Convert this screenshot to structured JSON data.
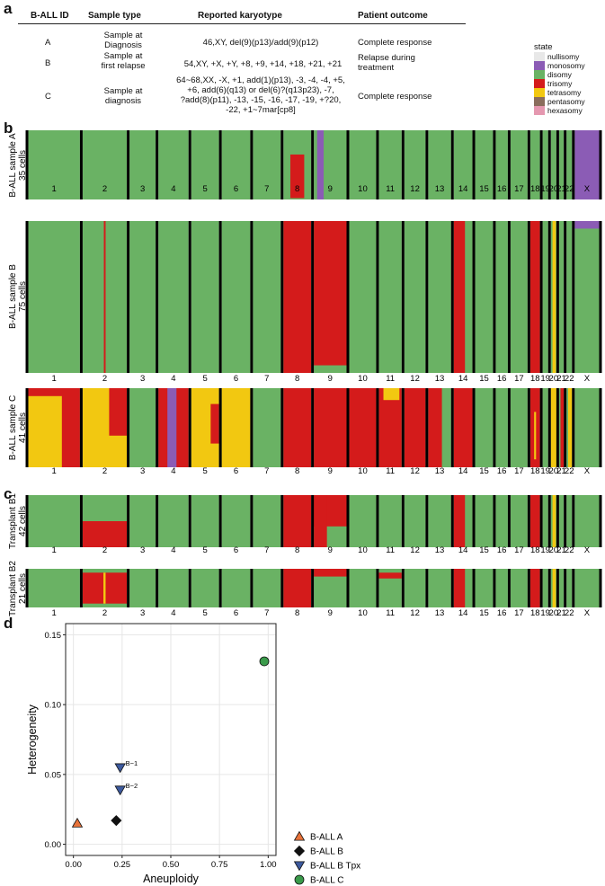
{
  "panels": {
    "a": "a",
    "b": "b",
    "c": "c",
    "d": "d"
  },
  "table": {
    "headers": [
      "B-ALL ID",
      "Sample type",
      "Reported karyotype",
      "Patient outcome"
    ],
    "rows": [
      {
        "id": "A",
        "type": "Sample at\nDiagnosis",
        "karyotype": "46,XY, del(9)(p13)/add(9)(p12)",
        "outcome": "Complete response"
      },
      {
        "id": "B",
        "type": "Sample at\nfirst relapse",
        "karyotype": "54,XY, +X, +Y, +8, +9, +14, +18, +21, +21",
        "outcome": "Relapse during\ntreatment"
      },
      {
        "id": "C",
        "type": "Sample at\ndiagnosis",
        "karyotype": "64~68,XX, -X, +1, add(1)(p13), -3, -4, -4, +5,\n+6, add(6)(q13) or del(6)?(q13p23), -7,\n?add(8)(p11), -13, -15, -16, -17, -19, +?20,\n-22, +1~7mar[cp8]",
        "outcome": "Complete response"
      }
    ]
  },
  "legend": {
    "title": "state",
    "items": [
      {
        "label": "nullisomy",
        "color": "#e8e8e8"
      },
      {
        "label": "monosomy",
        "color": "#8b5cb5"
      },
      {
        "label": "disomy",
        "color": "#6ab264"
      },
      {
        "label": "trisomy",
        "color": "#d41b1b"
      },
      {
        "label": "tetrasomy",
        "color": "#f2c811"
      },
      {
        "label": "pentasomy",
        "color": "#8a6d5c"
      },
      {
        "label": "hexasomy",
        "color": "#e598b0"
      }
    ]
  },
  "chromosomes": [
    "1",
    "2",
    "3",
    "4",
    "5",
    "6",
    "7",
    "8",
    "9",
    "10",
    "11",
    "12",
    "13",
    "14",
    "15",
    "16",
    "17",
    "18",
    "19",
    "20",
    "21",
    "22",
    "X"
  ],
  "heatmaps": [
    {
      "label": "B-ALL sample A\n35 cells",
      "panel": "b"
    },
    {
      "label": "B-ALL sample B\n75 cells",
      "panel": "b"
    },
    {
      "label": "B-ALL sample C\n41 cells",
      "panel": "b"
    },
    {
      "label": "Transplant B1\n42 cells",
      "panel": "c"
    },
    {
      "label": "Transplant B2\n21 cells",
      "panel": "c"
    }
  ],
  "chart_data": {
    "type": "scatter",
    "xlabel": "Aneuploidy",
    "ylabel": "Heterogeneity",
    "xlim": [
      -0.04,
      1.04
    ],
    "ylim": [
      -0.008,
      0.158
    ],
    "xticks": [
      0.0,
      0.25,
      0.5,
      0.75,
      1.0
    ],
    "xtick_labels": [
      "0.00",
      "0.25",
      "0.50",
      "0.75",
      "1.00"
    ],
    "yticks": [
      0.0,
      0.05,
      0.1,
      0.15
    ],
    "ytick_labels": [
      "0.00",
      "0.05",
      "0.10",
      "0.15"
    ],
    "points": [
      {
        "series": "B-ALL A",
        "x": 0.02,
        "y": 0.015,
        "label": ""
      },
      {
        "series": "B-ALL B",
        "x": 0.22,
        "y": 0.017,
        "label": ""
      },
      {
        "series": "B-ALL B Tpx",
        "x": 0.24,
        "y": 0.055,
        "label": "B−1"
      },
      {
        "series": "B-ALL B Tpx",
        "x": 0.24,
        "y": 0.039,
        "label": "B−2"
      },
      {
        "series": "B-ALL C",
        "x": 0.98,
        "y": 0.131,
        "label": ""
      }
    ],
    "series": [
      {
        "name": "B-ALL A",
        "marker": "triangle-up",
        "color": "#e8733a"
      },
      {
        "name": "B-ALL B",
        "marker": "diamond",
        "color": "#111111"
      },
      {
        "name": "B-ALL B Tpx",
        "marker": "triangle-down",
        "color": "#3d5a9e"
      },
      {
        "name": "B-ALL C",
        "marker": "circle",
        "color": "#3a9a4a"
      }
    ]
  }
}
